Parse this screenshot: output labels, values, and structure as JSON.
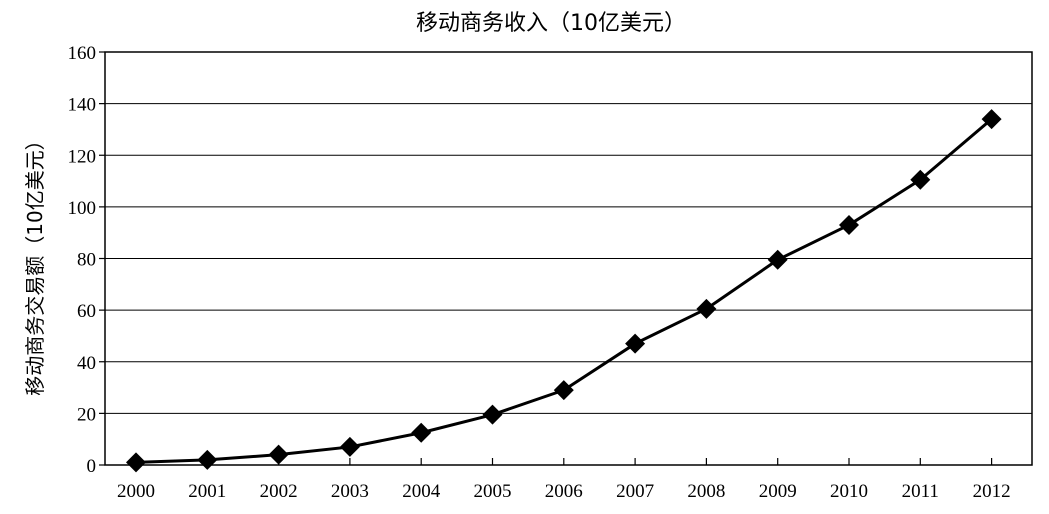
{
  "chart_data": {
    "type": "line",
    "title": "移动商务收入（10亿美元）",
    "xlabel": "",
    "ylabel": "移动商务交易额（10亿美元）",
    "categories": [
      "2000",
      "2001",
      "2002",
      "2003",
      "2004",
      "2005",
      "2006",
      "2007",
      "2008",
      "2009",
      "2010",
      "2011",
      "2012"
    ],
    "series": [
      {
        "values": [
          1,
          2,
          4,
          7,
          12.5,
          19.5,
          29,
          47,
          60.5,
          79.5,
          93,
          110.5,
          134
        ]
      }
    ],
    "ylim": [
      0,
      160
    ],
    "yticks": [
      "0",
      "20",
      "40",
      "60",
      "80",
      "100",
      "120",
      "140",
      "160"
    ],
    "grid": true,
    "colors": {
      "line": "#000000",
      "marker": "#000000",
      "grid": "#000000"
    }
  }
}
